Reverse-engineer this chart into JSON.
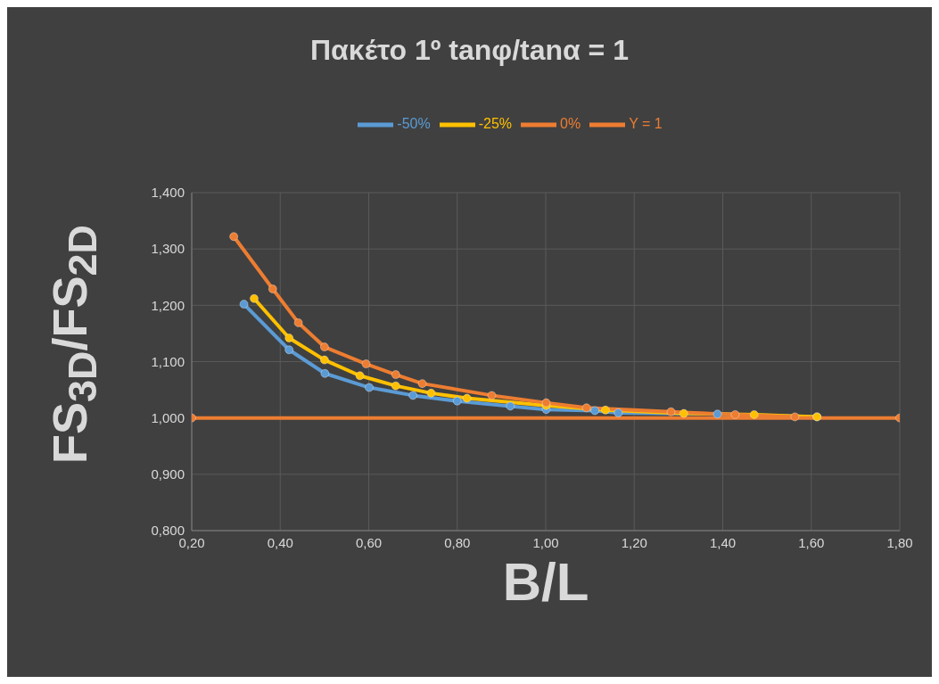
{
  "chart_data": {
    "type": "line",
    "title": "Πακέτο 1º tanφ/tanα = 1",
    "xlabel": "B/L",
    "ylabel": "FS$_{3D}$/FS$_{2D}$",
    "series": [
      {
        "name": "-50%",
        "color": "#5b9bd5",
        "x": [
          0.318,
          0.42,
          0.501,
          0.601,
          0.7,
          0.8,
          0.92,
          1.001,
          1.111,
          1.164,
          1.388,
          1.613
        ],
        "values": [
          1.202,
          1.121,
          1.079,
          1.054,
          1.04,
          1.03,
          1.021,
          1.015,
          1.013,
          1.009,
          1.007,
          1.002
        ]
      },
      {
        "name": "-25%",
        "color": "#ffc000",
        "x": [
          0.341,
          0.42,
          0.5,
          0.58,
          0.661,
          0.741,
          0.822,
          1.001,
          1.135,
          1.312,
          1.471,
          1.613
        ],
        "values": [
          1.212,
          1.142,
          1.103,
          1.075,
          1.057,
          1.044,
          1.035,
          1.022,
          1.014,
          1.008,
          1.006,
          1.002
        ]
      },
      {
        "name": "0%",
        "color": "#ed7d31",
        "x": [
          0.295,
          0.383,
          0.441,
          0.5,
          0.594,
          0.661,
          0.721,
          0.878,
          1.001,
          1.092,
          1.283,
          1.428,
          1.563
        ],
        "values": [
          1.322,
          1.229,
          1.169,
          1.126,
          1.096,
          1.077,
          1.061,
          1.04,
          1.027,
          1.018,
          1.011,
          1.006,
          1.002
        ]
      },
      {
        "name": "Y = 1",
        "color": "#ed7d31",
        "x": [
          0.2,
          1.8
        ],
        "values": [
          1,
          1
        ]
      }
    ],
    "xlim": [
      0.2,
      1.8
    ],
    "xticks": [
      {
        "value": 0.2,
        "label": "0,20"
      },
      {
        "value": 0.4,
        "label": "0,40"
      },
      {
        "value": 0.6,
        "label": "0,60"
      },
      {
        "value": 0.8,
        "label": "0,80"
      },
      {
        "value": 1.0,
        "label": "1,00"
      },
      {
        "value": 1.2,
        "label": "1,20"
      },
      {
        "value": 1.4,
        "label": "1,40"
      },
      {
        "value": 1.6,
        "label": "1,60"
      },
      {
        "value": 1.8,
        "label": "1,80"
      }
    ],
    "ylim": [
      0.8,
      1.4
    ],
    "yticks": [
      {
        "value": 0.8,
        "label": "0,800"
      },
      {
        "value": 0.9,
        "label": "0,900"
      },
      {
        "value": 1.0,
        "label": "1,000"
      },
      {
        "value": 1.1,
        "label": "1,100"
      },
      {
        "value": 1.2,
        "label": "1,200"
      },
      {
        "value": 1.3,
        "label": "1,300"
      },
      {
        "value": 1.4,
        "label": "1,400"
      }
    ],
    "grid": true,
    "legend": "top",
    "marker": "circle",
    "line_style": "solid"
  }
}
